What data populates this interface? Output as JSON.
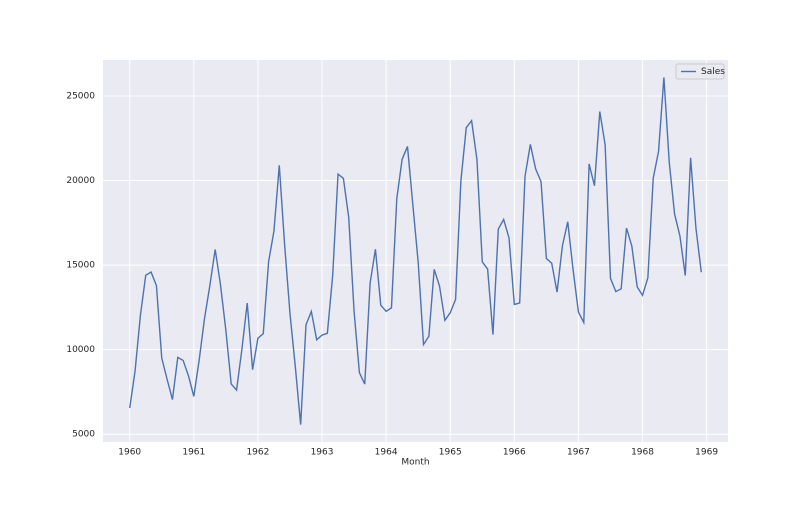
{
  "chart_data": {
    "type": "line",
    "x_label": "Month",
    "x": [
      "1960-01",
      "1960-02",
      "1960-03",
      "1960-04",
      "1960-05",
      "1960-06",
      "1960-07",
      "1960-08",
      "1960-09",
      "1960-10",
      "1960-11",
      "1960-12",
      "1961-01",
      "1961-02",
      "1961-03",
      "1961-04",
      "1961-05",
      "1961-06",
      "1961-07",
      "1961-08",
      "1961-09",
      "1961-10",
      "1961-11",
      "1961-12",
      "1962-01",
      "1962-02",
      "1962-03",
      "1962-04",
      "1962-05",
      "1962-06",
      "1962-07",
      "1962-08",
      "1962-09",
      "1962-10",
      "1962-11",
      "1962-12",
      "1963-01",
      "1963-02",
      "1963-03",
      "1963-04",
      "1963-05",
      "1963-06",
      "1963-07",
      "1963-08",
      "1963-09",
      "1963-10",
      "1963-11",
      "1963-12",
      "1964-01",
      "1964-02",
      "1964-03",
      "1964-04",
      "1964-05",
      "1964-06",
      "1964-07",
      "1964-08",
      "1964-09",
      "1964-10",
      "1964-11",
      "1964-12",
      "1965-01",
      "1965-02",
      "1965-03",
      "1965-04",
      "1965-05",
      "1965-06",
      "1965-07",
      "1965-08",
      "1965-09",
      "1965-10",
      "1965-11",
      "1965-12",
      "1966-01",
      "1966-02",
      "1966-03",
      "1966-04",
      "1966-05",
      "1966-06",
      "1966-07",
      "1966-08",
      "1966-09",
      "1966-10",
      "1966-11",
      "1966-12",
      "1967-01",
      "1967-02",
      "1967-03",
      "1967-04",
      "1967-05",
      "1967-06",
      "1967-07",
      "1967-08",
      "1967-09",
      "1967-10",
      "1967-11",
      "1967-12",
      "1968-01",
      "1968-02",
      "1968-03",
      "1968-04",
      "1968-05",
      "1968-06",
      "1968-07",
      "1968-08",
      "1968-09",
      "1968-10",
      "1968-11",
      "1968-12"
    ],
    "series": [
      {
        "name": "Sales",
        "color": "#4c72b0",
        "values": [
          6550,
          8728,
          12026,
          14395,
          14587,
          13791,
          9498,
          8251,
          7049,
          9545,
          9364,
          8456,
          7237,
          9374,
          11837,
          13784,
          15926,
          13821,
          11143,
          7975,
          7610,
          10015,
          12759,
          8816,
          10677,
          10947,
          15200,
          17010,
          20900,
          16205,
          12143,
          8997,
          5568,
          11474,
          12256,
          10583,
          10862,
          10965,
          14405,
          20379,
          20128,
          17816,
          12268,
          8642,
          7962,
          13932,
          15936,
          12628,
          12267,
          12470,
          18944,
          21259,
          22015,
          18581,
          15175,
          10306,
          10792,
          14752,
          13754,
          11738,
          12181,
          12965,
          19990,
          23125,
          23541,
          21247,
          15189,
          14767,
          10895,
          17130,
          17697,
          16611,
          12674,
          12760,
          20249,
          22135,
          20677,
          19933,
          15388,
          15113,
          13401,
          16135,
          17562,
          14720,
          12225,
          11608,
          20985,
          19692,
          24081,
          22114,
          14220,
          13434,
          13598,
          17187,
          16119,
          13713,
          13210,
          14251,
          20139,
          21725,
          26099,
          21084,
          18024,
          16722,
          14385,
          21342,
          17180,
          14577
        ]
      }
    ],
    "xlim": [
      "1959-08",
      "1969-05"
    ],
    "xticks": [
      {
        "value": "1960-01",
        "label": "1960"
      },
      {
        "value": "1961-01",
        "label": "1961"
      },
      {
        "value": "1962-01",
        "label": "1962"
      },
      {
        "value": "1963-01",
        "label": "1963"
      },
      {
        "value": "1964-01",
        "label": "1964"
      },
      {
        "value": "1965-01",
        "label": "1965"
      },
      {
        "value": "1966-01",
        "label": "1966"
      },
      {
        "value": "1967-01",
        "label": "1967"
      },
      {
        "value": "1968-01",
        "label": "1968"
      },
      {
        "value": "1969-01",
        "label": "1969"
      }
    ],
    "ylim": [
      4541,
      27126
    ],
    "yticks": [
      5000,
      10000,
      15000,
      20000,
      25000
    ],
    "grid": true,
    "legend": "upper right"
  }
}
